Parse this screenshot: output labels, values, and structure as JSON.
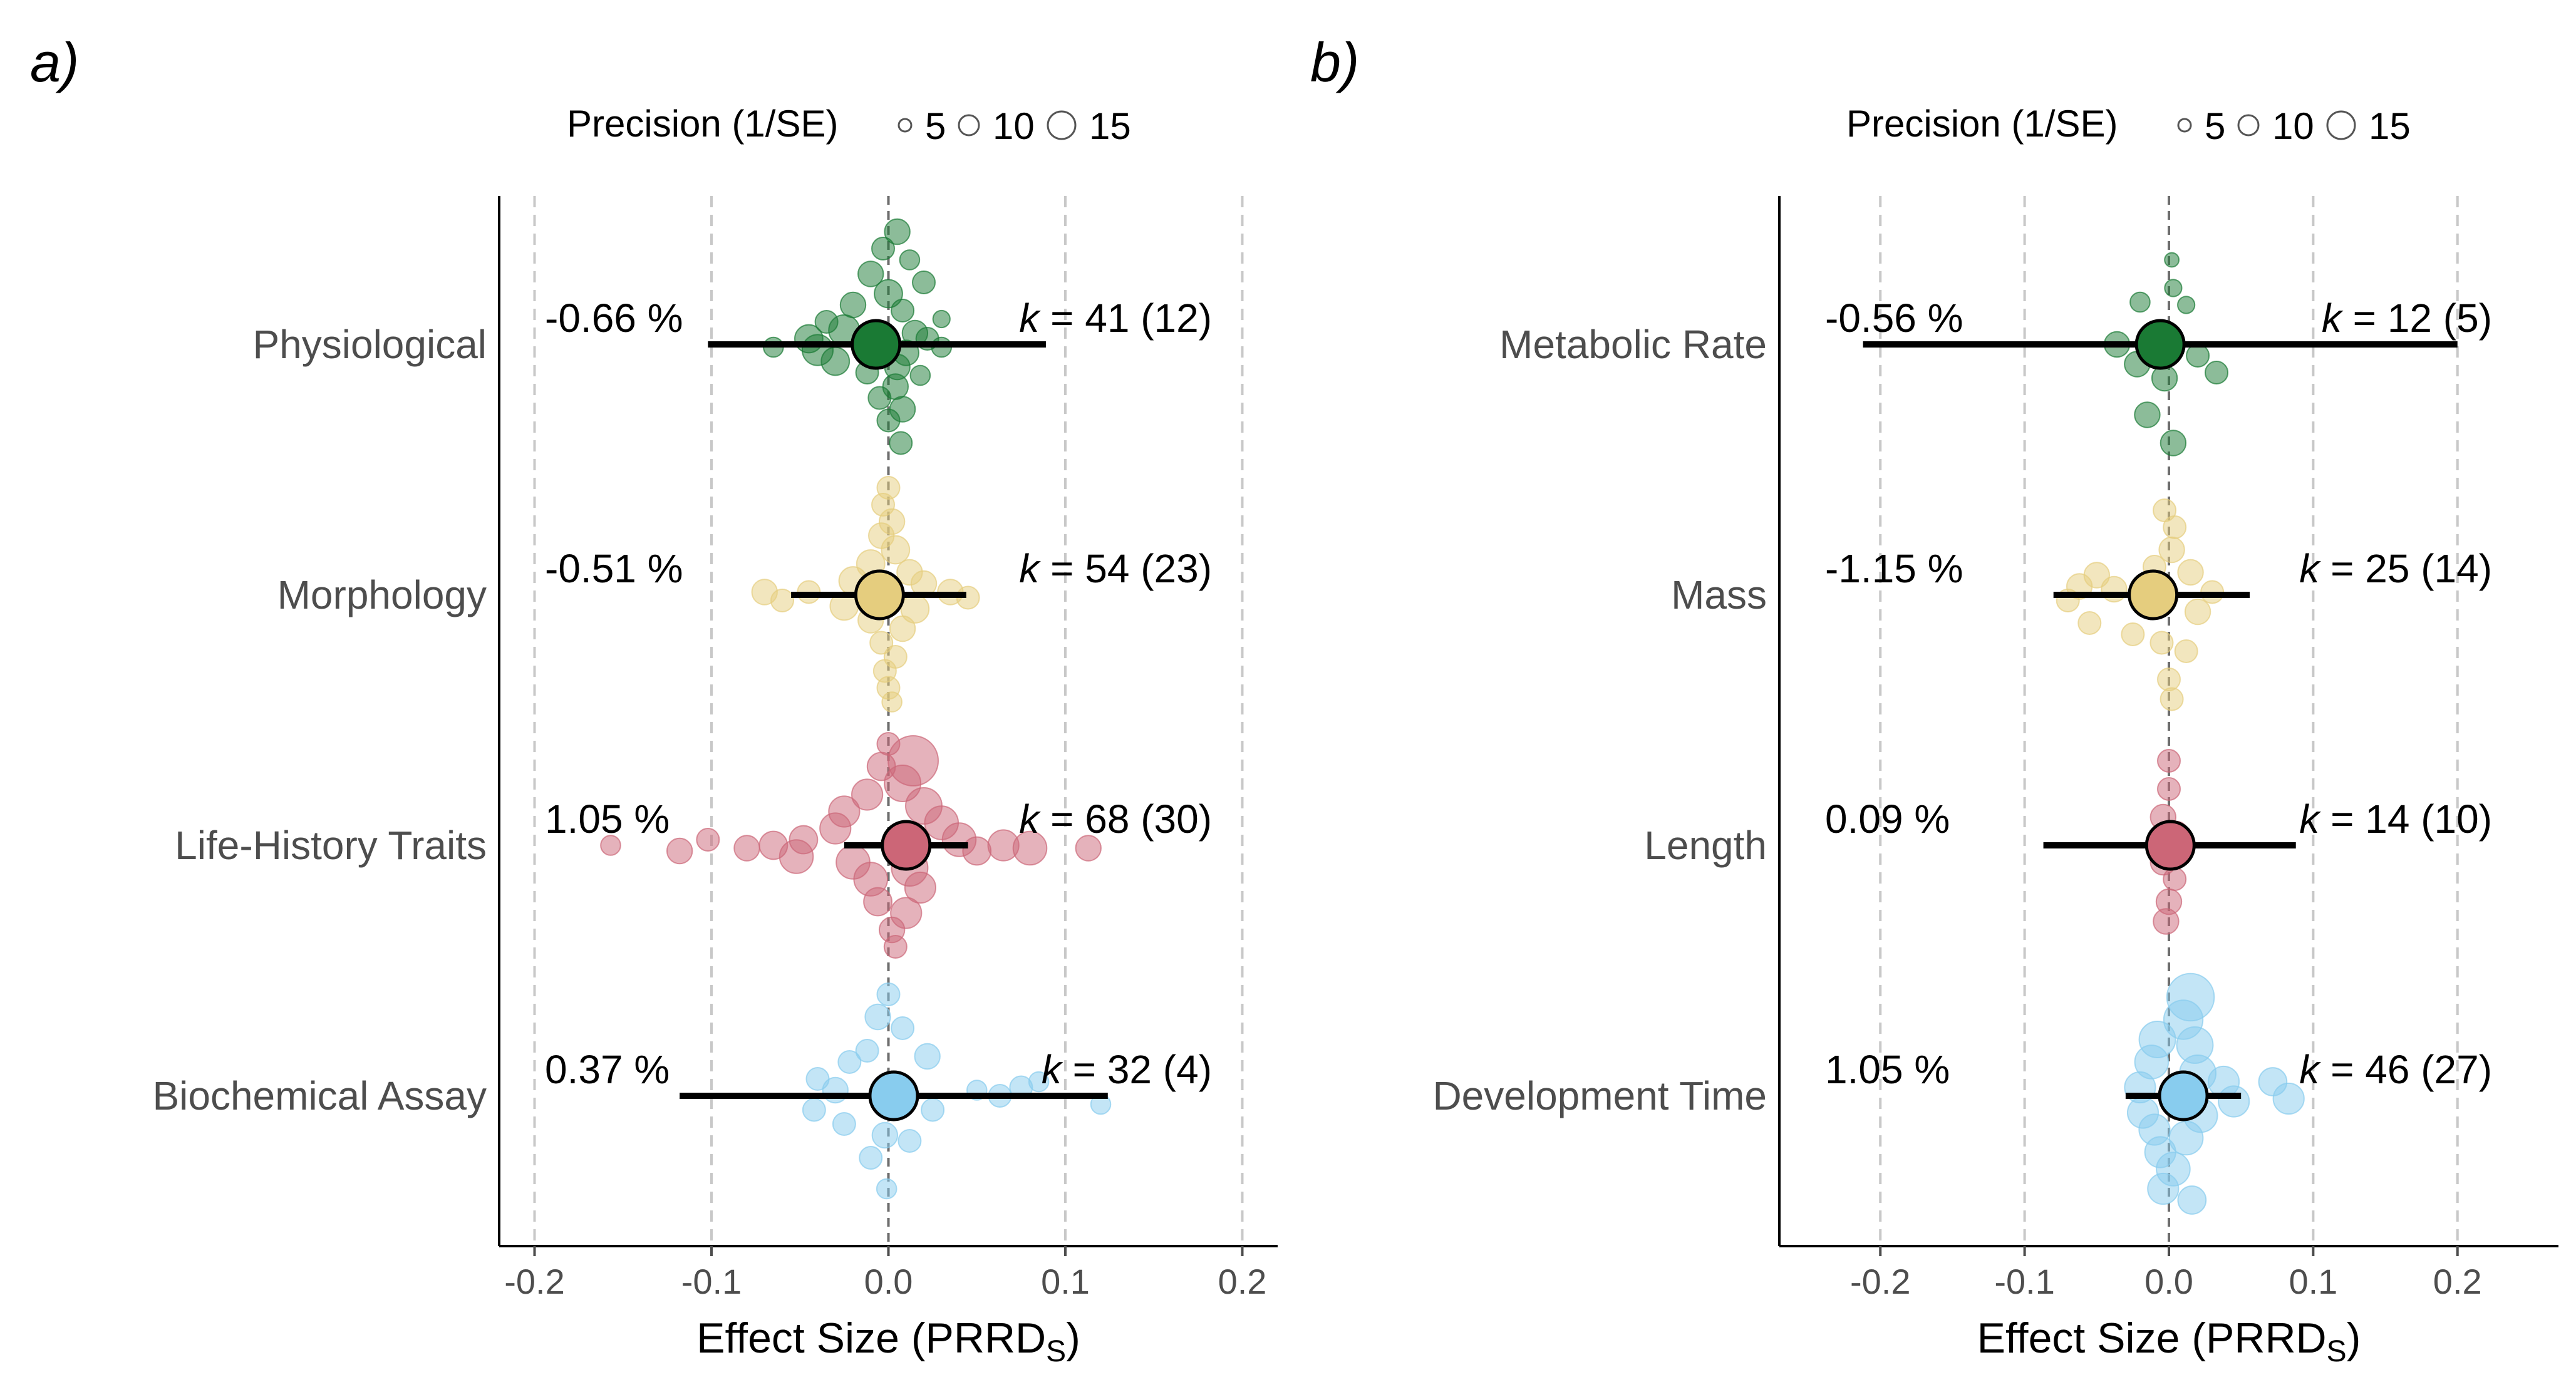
{
  "chart_data": [
    {
      "type": "scatter",
      "subtype": "orchard-plot",
      "panel_label": "a)",
      "xlabel": "Effect Size (PRRD",
      "xlabel_sub": "S",
      "xlabel_close": ")",
      "xlim": [
        -0.22,
        0.22
      ],
      "xticks": [
        -0.2,
        -0.1,
        0.0,
        0.1,
        0.2
      ],
      "xtick_labels": [
        "-0.2",
        "-0.1",
        "0.0",
        "0.1",
        "0.2"
      ],
      "grid": "vertical-dashed",
      "legend": {
        "title": "Precision (1/SE)",
        "placement": "top",
        "sizes": [
          5,
          10,
          15
        ],
        "labels": [
          "5",
          "10",
          "15"
        ]
      },
      "categories": [
        {
          "name": "Physiological",
          "color": "#1a7a34",
          "estimate": -0.007,
          "ci": [
            -0.102,
            0.089
          ],
          "percent_label": "-0.66 %",
          "k_label": "k = 41 (12)",
          "k_prefix": "k",
          "k_rest": " = 41 (12)",
          "points": [
            {
              "x": 0.005,
              "y": 0.4,
              "p": 6
            },
            {
              "x": -0.003,
              "y": 0.34,
              "p": 5
            },
            {
              "x": 0.012,
              "y": 0.3,
              "p": 4
            },
            {
              "x": -0.01,
              "y": 0.25,
              "p": 6
            },
            {
              "x": 0.02,
              "y": 0.22,
              "p": 5
            },
            {
              "x": 0.0,
              "y": 0.18,
              "p": 7
            },
            {
              "x": -0.02,
              "y": 0.14,
              "p": 6
            },
            {
              "x": 0.008,
              "y": 0.12,
              "p": 5
            },
            {
              "x": -0.035,
              "y": 0.08,
              "p": 5
            },
            {
              "x": 0.03,
              "y": 0.09,
              "p": 3
            },
            {
              "x": -0.025,
              "y": 0.05,
              "p": 8
            },
            {
              "x": 0.015,
              "y": 0.04,
              "p": 6
            },
            {
              "x": -0.045,
              "y": 0.02,
              "p": 7
            },
            {
              "x": 0.022,
              "y": 0.02,
              "p": 5
            },
            {
              "x": -0.065,
              "y": -0.01,
              "p": 4
            },
            {
              "x": -0.04,
              "y": -0.02,
              "p": 8
            },
            {
              "x": 0.01,
              "y": -0.03,
              "p": 6
            },
            {
              "x": 0.03,
              "y": -0.01,
              "p": 4
            },
            {
              "x": -0.03,
              "y": -0.06,
              "p": 7
            },
            {
              "x": 0.005,
              "y": -0.08,
              "p": 6
            },
            {
              "x": -0.012,
              "y": -0.1,
              "p": 5
            },
            {
              "x": 0.018,
              "y": -0.11,
              "p": 4
            },
            {
              "x": 0.004,
              "y": -0.15,
              "p": 6
            },
            {
              "x": -0.005,
              "y": -0.19,
              "p": 5
            },
            {
              "x": 0.008,
              "y": -0.23,
              "p": 6
            },
            {
              "x": 0.0,
              "y": -0.27,
              "p": 5
            },
            {
              "x": 0.007,
              "y": -0.35,
              "p": 5
            }
          ]
        },
        {
          "name": "Morphology",
          "color": "#e5cd7e",
          "estimate": -0.005,
          "ci": [
            -0.055,
            0.044
          ],
          "percent_label": "-0.51 %",
          "k_label": "k = 54 (23)",
          "k_prefix": "k",
          "k_rest": " = 54 (23)",
          "points": [
            {
              "x": 0.0,
              "y": 0.38,
              "p": 5
            },
            {
              "x": -0.003,
              "y": 0.32,
              "p": 5
            },
            {
              "x": 0.002,
              "y": 0.26,
              "p": 6
            },
            {
              "x": -0.004,
              "y": 0.21,
              "p": 6
            },
            {
              "x": 0.004,
              "y": 0.16,
              "p": 7
            },
            {
              "x": -0.01,
              "y": 0.11,
              "p": 7
            },
            {
              "x": 0.012,
              "y": 0.08,
              "p": 6
            },
            {
              "x": -0.02,
              "y": 0.05,
              "p": 7
            },
            {
              "x": 0.02,
              "y": 0.04,
              "p": 6
            },
            {
              "x": -0.07,
              "y": 0.01,
              "p": 6
            },
            {
              "x": -0.06,
              "y": -0.02,
              "p": 5
            },
            {
              "x": -0.045,
              "y": 0.01,
              "p": 5
            },
            {
              "x": 0.035,
              "y": 0.01,
              "p": 6
            },
            {
              "x": 0.045,
              "y": -0.01,
              "p": 5
            },
            {
              "x": -0.025,
              "y": -0.04,
              "p": 7
            },
            {
              "x": 0.015,
              "y": -0.05,
              "p": 7
            },
            {
              "x": -0.01,
              "y": -0.09,
              "p": 6
            },
            {
              "x": 0.008,
              "y": -0.12,
              "p": 6
            },
            {
              "x": -0.004,
              "y": -0.17,
              "p": 5
            },
            {
              "x": 0.004,
              "y": -0.22,
              "p": 5
            },
            {
              "x": -0.002,
              "y": -0.27,
              "p": 5
            },
            {
              "x": 0.0,
              "y": -0.33,
              "p": 5
            },
            {
              "x": 0.002,
              "y": -0.38,
              "p": 4
            }
          ]
        },
        {
          "name": "Life-History Traits",
          "color": "#cc6677",
          "estimate": 0.01,
          "ci": [
            -0.025,
            0.045
          ],
          "percent_label": "1.05 %",
          "k_label": "k = 68 (30)",
          "k_prefix": "k",
          "k_rest": " = 68 (30)",
          "points": [
            {
              "x": 0.0,
              "y": 0.36,
              "p": 5
            },
            {
              "x": 0.014,
              "y": 0.3,
              "p": 15
            },
            {
              "x": -0.004,
              "y": 0.28,
              "p": 7
            },
            {
              "x": 0.008,
              "y": 0.22,
              "p": 10
            },
            {
              "x": -0.012,
              "y": 0.18,
              "p": 8
            },
            {
              "x": 0.02,
              "y": 0.14,
              "p": 10
            },
            {
              "x": -0.025,
              "y": 0.12,
              "p": 8
            },
            {
              "x": 0.03,
              "y": 0.08,
              "p": 9
            },
            {
              "x": -0.03,
              "y": 0.06,
              "p": 8
            },
            {
              "x": 0.04,
              "y": 0.02,
              "p": 9
            },
            {
              "x": 0.05,
              "y": -0.02,
              "p": 7
            },
            {
              "x": 0.065,
              "y": 0.0,
              "p": 8
            },
            {
              "x": 0.08,
              "y": -0.01,
              "p": 9
            },
            {
              "x": 0.113,
              "y": -0.01,
              "p": 6
            },
            {
              "x": -0.048,
              "y": 0.02,
              "p": 7
            },
            {
              "x": -0.052,
              "y": -0.04,
              "p": 9
            },
            {
              "x": -0.065,
              "y": 0.0,
              "p": 7
            },
            {
              "x": -0.08,
              "y": -0.01,
              "p": 6
            },
            {
              "x": -0.102,
              "y": 0.02,
              "p": 5
            },
            {
              "x": -0.118,
              "y": -0.02,
              "p": 6
            },
            {
              "x": -0.157,
              "y": 0.0,
              "p": 4
            },
            {
              "x": -0.02,
              "y": -0.06,
              "p": 9
            },
            {
              "x": 0.012,
              "y": -0.08,
              "p": 10
            },
            {
              "x": -0.01,
              "y": -0.12,
              "p": 9
            },
            {
              "x": 0.018,
              "y": -0.15,
              "p": 8
            },
            {
              "x": -0.006,
              "y": -0.2,
              "p": 7
            },
            {
              "x": 0.01,
              "y": -0.24,
              "p": 8
            },
            {
              "x": 0.002,
              "y": -0.3,
              "p": 6
            },
            {
              "x": 0.004,
              "y": -0.36,
              "p": 5
            }
          ]
        },
        {
          "name": "Biochemical Assay",
          "color": "#88ccee",
          "estimate": 0.003,
          "ci": [
            -0.118,
            0.124
          ],
          "percent_label": "0.37 %",
          "k_label": "k = 32 (4)",
          "k_prefix": "k",
          "k_rest": " = 32 (4)",
          "points": [
            {
              "x": 0.0,
              "y": 0.36,
              "p": 5
            },
            {
              "x": -0.006,
              "y": 0.28,
              "p": 6
            },
            {
              "x": 0.008,
              "y": 0.24,
              "p": 5
            },
            {
              "x": 0.022,
              "y": 0.14,
              "p": 6
            },
            {
              "x": -0.012,
              "y": 0.16,
              "p": 5
            },
            {
              "x": -0.022,
              "y": 0.12,
              "p": 5
            },
            {
              "x": -0.04,
              "y": 0.06,
              "p": 5
            },
            {
              "x": 0.05,
              "y": 0.02,
              "p": 4
            },
            {
              "x": 0.063,
              "y": 0.0,
              "p": 5
            },
            {
              "x": 0.075,
              "y": 0.03,
              "p": 5
            },
            {
              "x": 0.085,
              "y": 0.05,
              "p": 4
            },
            {
              "x": 0.12,
              "y": -0.03,
              "p": 4
            },
            {
              "x": -0.03,
              "y": 0.02,
              "p": 6
            },
            {
              "x": -0.042,
              "y": -0.05,
              "p": 5
            },
            {
              "x": 0.025,
              "y": -0.05,
              "p": 5
            },
            {
              "x": -0.025,
              "y": -0.1,
              "p": 5
            },
            {
              "x": -0.002,
              "y": -0.14,
              "p": 6
            },
            {
              "x": 0.012,
              "y": -0.16,
              "p": 5
            },
            {
              "x": -0.01,
              "y": -0.22,
              "p": 5
            },
            {
              "x": -0.001,
              "y": -0.33,
              "p": 4
            }
          ]
        }
      ]
    },
    {
      "type": "scatter",
      "subtype": "orchard-plot",
      "panel_label": "b)",
      "xlabel": "Effect Size (PRRD",
      "xlabel_sub": "S",
      "xlabel_close": ")",
      "xlim": [
        -0.27,
        0.27
      ],
      "xticks": [
        -0.2,
        -0.1,
        0.0,
        0.1,
        0.2
      ],
      "xtick_labels": [
        "-0.2",
        "-0.1",
        "0.0",
        "0.1",
        "0.2"
      ],
      "grid": "vertical-dashed",
      "legend": {
        "title": "Precision (1/SE)",
        "placement": "top",
        "sizes": [
          5,
          10,
          15
        ],
        "labels": [
          "5",
          "10",
          "15"
        ]
      },
      "categories": [
        {
          "name": "Metabolic Rate",
          "color": "#1a7a34",
          "estimate": -0.006,
          "ci": [
            -0.212,
            0.2
          ],
          "percent_label": "-0.56 %",
          "k_label": "k = 12 (5)",
          "k_prefix": "k",
          "k_rest": " = 12 (5)",
          "points": [
            {
              "x": 0.002,
              "y": 0.3,
              "p": 2
            },
            {
              "x": 0.003,
              "y": 0.2,
              "p": 3
            },
            {
              "x": -0.02,
              "y": 0.15,
              "p": 4
            },
            {
              "x": 0.012,
              "y": 0.14,
              "p": 3
            },
            {
              "x": -0.036,
              "y": 0.0,
              "p": 6
            },
            {
              "x": 0.02,
              "y": -0.04,
              "p": 5
            },
            {
              "x": 0.033,
              "y": -0.1,
              "p": 5
            },
            {
              "x": -0.022,
              "y": -0.07,
              "p": 6
            },
            {
              "x": -0.003,
              "y": -0.12,
              "p": 6
            },
            {
              "x": -0.015,
              "y": -0.25,
              "p": 6
            },
            {
              "x": 0.003,
              "y": -0.35,
              "p": 6
            }
          ]
        },
        {
          "name": "Mass",
          "color": "#e5cd7e",
          "estimate": -0.011,
          "ci": [
            -0.08,
            0.056
          ],
          "percent_label": "-1.15 %",
          "k_label": "k = 25 (14)",
          "k_prefix": "k",
          "k_rest": " = 25 (14)",
          "points": [
            {
              "x": -0.003,
              "y": 0.3,
              "p": 5
            },
            {
              "x": 0.004,
              "y": 0.24,
              "p": 5
            },
            {
              "x": 0.002,
              "y": 0.16,
              "p": 6
            },
            {
              "x": -0.01,
              "y": 0.1,
              "p": 5
            },
            {
              "x": 0.015,
              "y": 0.08,
              "p": 6
            },
            {
              "x": -0.05,
              "y": 0.07,
              "p": 6
            },
            {
              "x": -0.062,
              "y": 0.03,
              "p": 6
            },
            {
              "x": -0.07,
              "y": -0.02,
              "p": 5
            },
            {
              "x": -0.038,
              "y": 0.02,
              "p": 6
            },
            {
              "x": 0.03,
              "y": 0.01,
              "p": 5
            },
            {
              "x": -0.055,
              "y": -0.1,
              "p": 5
            },
            {
              "x": 0.02,
              "y": -0.06,
              "p": 6
            },
            {
              "x": -0.025,
              "y": -0.14,
              "p": 5
            },
            {
              "x": -0.005,
              "y": -0.17,
              "p": 5
            },
            {
              "x": 0.012,
              "y": -0.2,
              "p": 5
            },
            {
              "x": 0.0,
              "y": -0.3,
              "p": 5
            },
            {
              "x": 0.002,
              "y": -0.37,
              "p": 5
            }
          ]
        },
        {
          "name": "Length",
          "color": "#cc6677",
          "estimate": 0.001,
          "ci": [
            -0.087,
            0.088
          ],
          "percent_label": "0.09 %",
          "k_label": "k = 14 (10)",
          "k_prefix": "k",
          "k_rest": " = 14 (10)",
          "points": [
            {
              "x": 0.0,
              "y": 0.3,
              "p": 5
            },
            {
              "x": 0.0,
              "y": 0.2,
              "p": 5
            },
            {
              "x": -0.004,
              "y": 0.1,
              "p": 6
            },
            {
              "x": 0.005,
              "y": 0.04,
              "p": 6
            },
            {
              "x": -0.004,
              "y": -0.06,
              "p": 6
            },
            {
              "x": 0.004,
              "y": -0.12,
              "p": 5
            },
            {
              "x": 0.0,
              "y": -0.2,
              "p": 6
            },
            {
              "x": -0.002,
              "y": -0.27,
              "p": 6
            }
          ]
        },
        {
          "name": "Development Time",
          "color": "#88ccee",
          "estimate": 0.01,
          "ci": [
            -0.03,
            0.05
          ],
          "percent_label": "1.05 %",
          "k_label": "k = 46 (27)",
          "k_prefix": "k",
          "k_rest": " = 46 (27)",
          "points": [
            {
              "x": 0.015,
              "y": 0.35,
              "p": 14
            },
            {
              "x": 0.01,
              "y": 0.27,
              "p": 11
            },
            {
              "x": -0.008,
              "y": 0.2,
              "p": 10
            },
            {
              "x": 0.018,
              "y": 0.18,
              "p": 10
            },
            {
              "x": -0.012,
              "y": 0.12,
              "p": 9
            },
            {
              "x": 0.02,
              "y": 0.08,
              "p": 10
            },
            {
              "x": 0.038,
              "y": 0.05,
              "p": 8
            },
            {
              "x": 0.072,
              "y": 0.05,
              "p": 7
            },
            {
              "x": 0.083,
              "y": -0.01,
              "p": 8
            },
            {
              "x": -0.02,
              "y": 0.03,
              "p": 8
            },
            {
              "x": 0.045,
              "y": -0.02,
              "p": 8
            },
            {
              "x": -0.018,
              "y": -0.06,
              "p": 8
            },
            {
              "x": 0.022,
              "y": -0.07,
              "p": 9
            },
            {
              "x": -0.01,
              "y": -0.12,
              "p": 8
            },
            {
              "x": 0.012,
              "y": -0.15,
              "p": 9
            },
            {
              "x": -0.006,
              "y": -0.2,
              "p": 8
            },
            {
              "x": 0.003,
              "y": -0.26,
              "p": 9
            },
            {
              "x": -0.004,
              "y": -0.33,
              "p": 8
            },
            {
              "x": 0.016,
              "y": -0.37,
              "p": 7
            }
          ]
        }
      ]
    }
  ]
}
